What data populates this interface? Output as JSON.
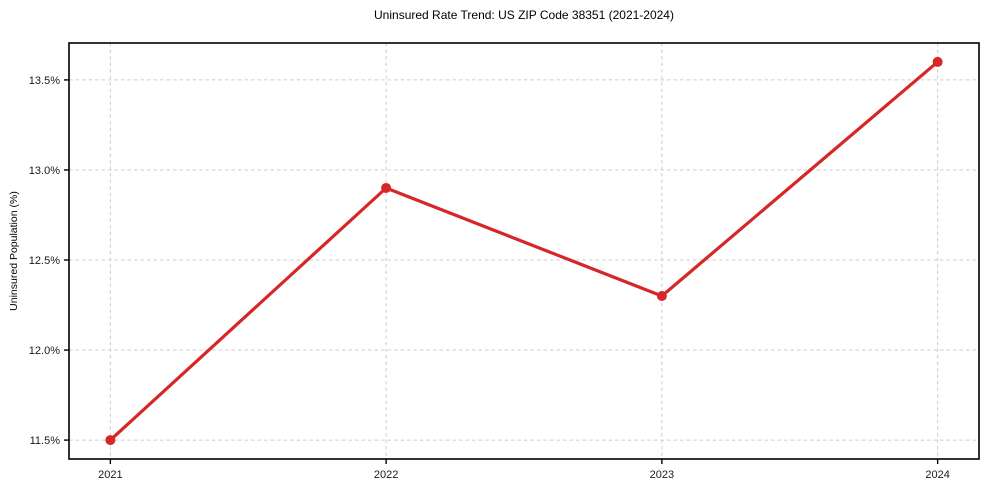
{
  "page": {
    "background_color": "#ffffff"
  },
  "chart_data": {
    "type": "line",
    "title": "Uninsured Rate Trend: US ZIP Code 38351 (2021-2024)",
    "xlabel": "",
    "ylabel": "Uninsured Population (%)",
    "x": [
      2021,
      2022,
      2023,
      2024
    ],
    "x_tick_labels": [
      "2021",
      "2022",
      "2023",
      "2024"
    ],
    "values": [
      11.5,
      12.9,
      12.3,
      13.6
    ],
    "y_ticks": [
      11.5,
      12.0,
      12.5,
      13.0,
      13.5
    ],
    "y_tick_labels": [
      "11.5%",
      "12.0%",
      "12.5%",
      "13.0%",
      "13.5%"
    ],
    "xlim": [
      2020.85,
      2024.15
    ],
    "ylim": [
      11.395,
      13.705
    ],
    "grid": true,
    "grid_style": "dashed",
    "legend_position": "none",
    "line_color": "#d62728",
    "marker": "circle",
    "grid_color": "#cccccc",
    "axis_color": "#000000",
    "tick_label_color": "#1a1a1a"
  }
}
